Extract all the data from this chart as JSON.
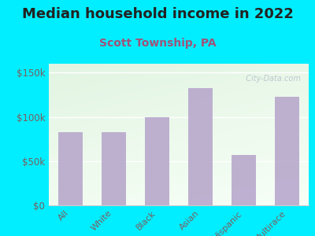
{
  "title": "Median household income in 2022",
  "subtitle": "Scott Township, PA",
  "categories": [
    "All",
    "White",
    "Black",
    "Asian",
    "Hispanic",
    "Multirace"
  ],
  "values": [
    83000,
    83000,
    100000,
    132000,
    57000,
    123000
  ],
  "bar_color": "#b8a8cc",
  "bar_alpha": 0.9,
  "background_outer": "#00eeff",
  "title_color": "#222222",
  "subtitle_color": "#a0527a",
  "tick_color": "#7a6060",
  "ytick_labels": [
    "$0",
    "$50k",
    "$100k",
    "$150k"
  ],
  "yticks": [
    0,
    50000,
    100000,
    150000
  ],
  "ylim": [
    0,
    160000
  ],
  "title_fontsize": 13,
  "subtitle_fontsize": 10,
  "tick_fontsize": 8.5,
  "xlabel_fontsize": 8,
  "watermark": "  City-Data.com"
}
